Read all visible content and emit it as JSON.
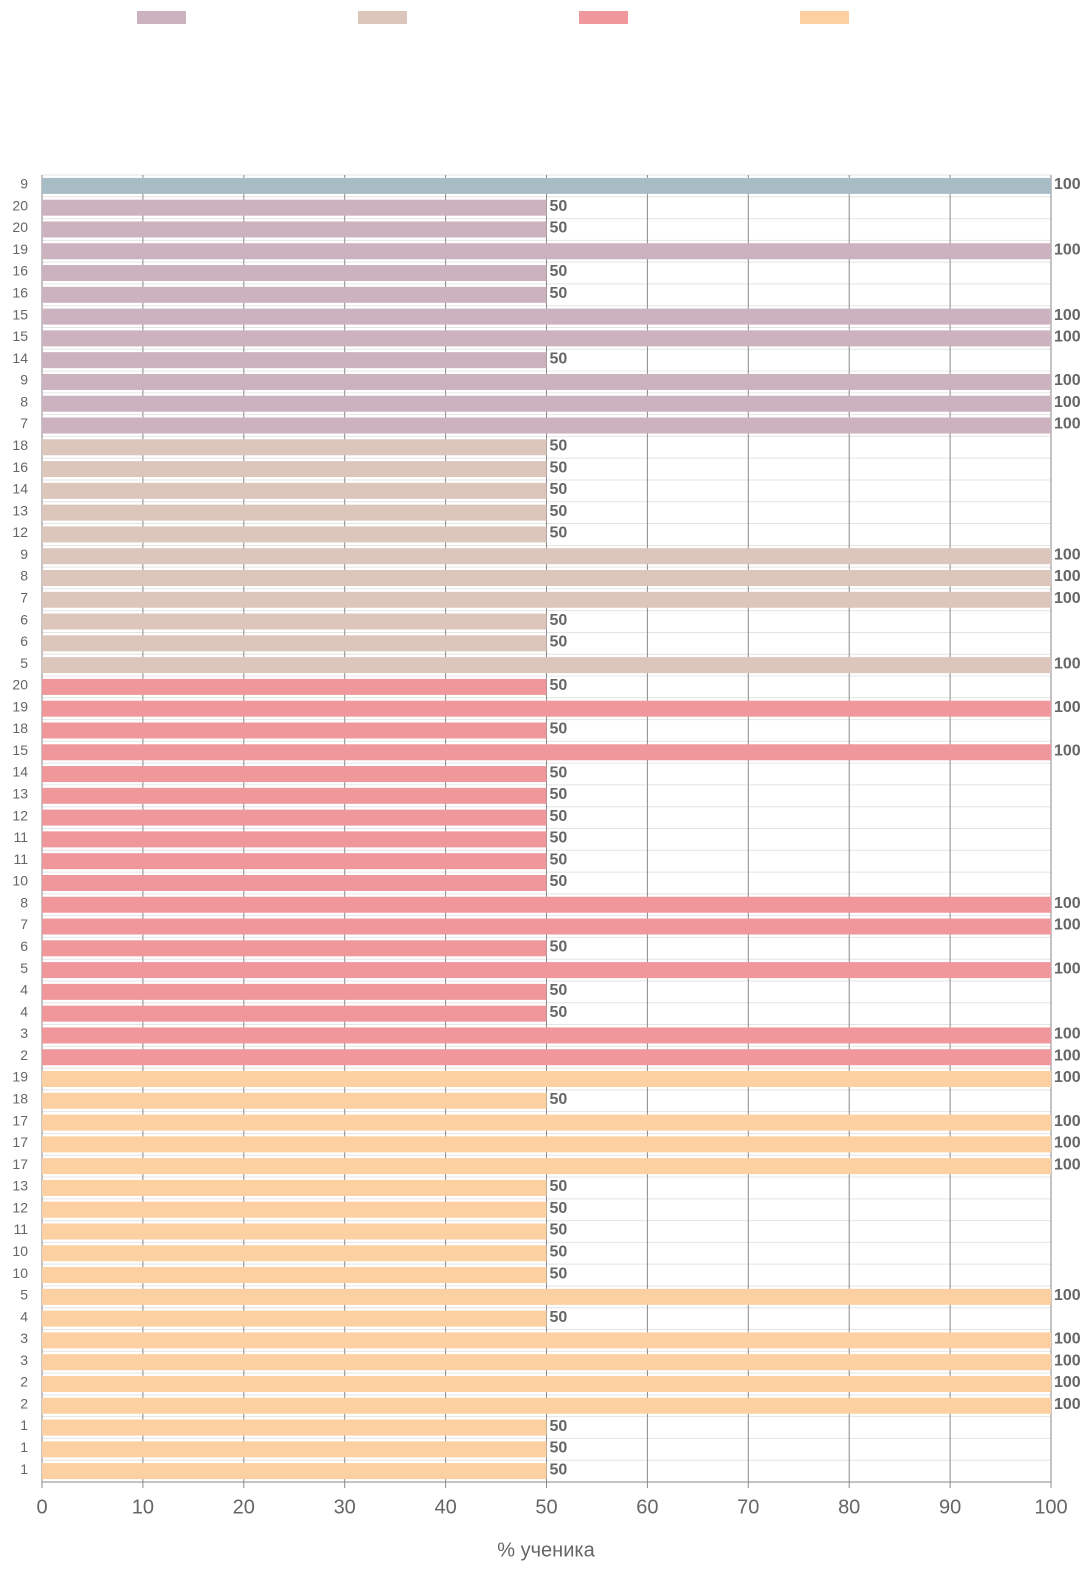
{
  "chart_data": {
    "type": "hbar",
    "legend_colors": [
      "#cbb2be",
      "#dcc6bc",
      "#f0979c",
      "#fcd0a0"
    ],
    "categories": [
      "9",
      "20",
      "20",
      "19",
      "16",
      "16",
      "15",
      "15",
      "14",
      "9",
      "8",
      "7",
      "18",
      "16",
      "14",
      "13",
      "12",
      "9",
      "8",
      "7",
      "6",
      "6",
      "5",
      "20",
      "19",
      "18",
      "15",
      "14",
      "13",
      "12",
      "11",
      "11",
      "10",
      "8",
      "7",
      "6",
      "5",
      "4",
      "4",
      "3",
      "2",
      "19",
      "18",
      "17",
      "17",
      "17",
      "13",
      "12",
      "11",
      "10",
      "10",
      "5",
      "4",
      "3",
      "3",
      "2",
      "2",
      "1",
      "1",
      "1"
    ],
    "values": [
      100,
      50,
      50,
      100,
      50,
      50,
      100,
      100,
      50,
      100,
      100,
      100,
      50,
      50,
      50,
      50,
      50,
      100,
      100,
      100,
      50,
      50,
      100,
      50,
      100,
      50,
      100,
      50,
      50,
      50,
      50,
      50,
      50,
      100,
      100,
      50,
      100,
      50,
      50,
      100,
      100,
      100,
      50,
      100,
      100,
      100,
      50,
      50,
      50,
      50,
      50,
      100,
      50,
      100,
      100,
      100,
      100,
      50,
      50,
      50
    ],
    "colors": [
      "#a8bcc6",
      "#cbb2be",
      "#cbb2be",
      "#cbb2be",
      "#cbb2be",
      "#cbb2be",
      "#cbb2be",
      "#cbb2be",
      "#cbb2be",
      "#cbb2be",
      "#cbb2be",
      "#cbb2be",
      "#dcc6bc",
      "#dcc6bc",
      "#dcc6bc",
      "#dcc6bc",
      "#dcc6bc",
      "#dcc6bc",
      "#dcc6bc",
      "#dcc6bc",
      "#dcc6bc",
      "#dcc6bc",
      "#dcc6bc",
      "#f0979c",
      "#f0979c",
      "#f0979c",
      "#f0979c",
      "#f0979c",
      "#f0979c",
      "#f0979c",
      "#f0979c",
      "#f0979c",
      "#f0979c",
      "#f0979c",
      "#f0979c",
      "#f0979c",
      "#f0979c",
      "#f0979c",
      "#f0979c",
      "#f0979c",
      "#f0979c",
      "#fcd0a0",
      "#fcd0a0",
      "#fcd0a0",
      "#fcd0a0",
      "#fcd0a0",
      "#fcd0a0",
      "#fcd0a0",
      "#fcd0a0",
      "#fcd0a0",
      "#fcd0a0",
      "#fcd0a0",
      "#fcd0a0",
      "#fcd0a0",
      "#fcd0a0",
      "#fcd0a0",
      "#fcd0a0",
      "#fcd0a0",
      "#fcd0a0",
      "#fcd0a0"
    ],
    "xlim": [
      0,
      100
    ],
    "xticks": [
      0,
      10,
      20,
      30,
      40,
      50,
      60,
      70,
      80,
      90,
      100
    ],
    "x_label": "% ученика",
    "grid": true
  }
}
